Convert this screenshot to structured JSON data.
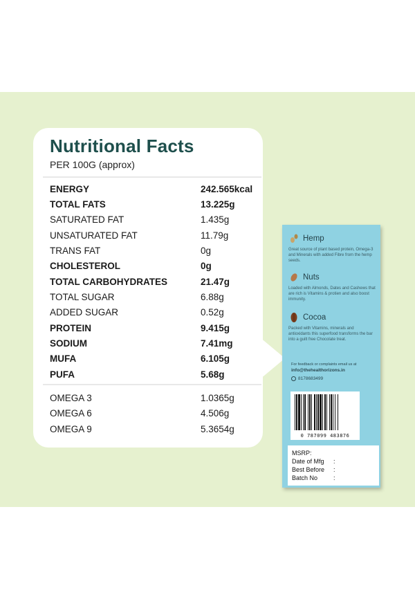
{
  "colors": {
    "background_band": "#e6f1cf",
    "title": "#1e4f4c",
    "box": "#8fd2e2"
  },
  "facts": {
    "title": "Nutritional Facts",
    "subtitle": "PER 100G (approx)",
    "rows": [
      {
        "name": "ENERGY",
        "value": "242.565kcal",
        "bold": true
      },
      {
        "name": "TOTAL FATS",
        "value": "13.225g",
        "bold": true
      },
      {
        "name": "SATURATED FAT",
        "value": "1.435g",
        "bold": false
      },
      {
        "name": "UNSATURATED FAT",
        "value": "11.79g",
        "bold": false
      },
      {
        "name": "TRANS FAT",
        "value": "0g",
        "bold": false
      },
      {
        "name": "CHOLESTEROL",
        "value": "0g",
        "bold": true
      },
      {
        "name": "TOTAL CARBOHYDRATES",
        "value": "21.47g",
        "bold": true
      },
      {
        "name": "TOTAL SUGAR",
        "value": "6.88g",
        "bold": false
      },
      {
        "name": "ADDED SUGAR",
        "value": "0.52g",
        "bold": false
      },
      {
        "name": "PROTEIN",
        "value": "9.415g",
        "bold": true
      },
      {
        "name": "SODIUM",
        "value": "7.41mg",
        "bold": true
      },
      {
        "name": "MUFA",
        "value": "6.105g",
        "bold": true
      },
      {
        "name": "PUFA",
        "value": "5.68g",
        "bold": true
      }
    ],
    "omega_rows": [
      {
        "name": "OMEGA 3",
        "value": "1.0365g"
      },
      {
        "name": "OMEGA 6",
        "value": "4.506g"
      },
      {
        "name": "OMEGA 9",
        "value": "5.3654g"
      }
    ]
  },
  "box": {
    "sections": [
      {
        "title": "Hemp",
        "icon": "hemp-seed-icon",
        "text": "Great source of plant based protein, Omega-3 and Minerals with added Fibre from the hemp seeds."
      },
      {
        "title": "Nuts",
        "icon": "nut-icon",
        "text": "Loaded with Almonds, Dates and Cashews that are rich is Vitamins & protien and also boost immunity."
      },
      {
        "title": "Cocoa",
        "icon": "cocoa-pod-icon",
        "text": "Packed with Vitamins, minerals and antioxidants this superfood transforms the bar into a guilt free Chocolate treat."
      }
    ],
    "contact_note": "For feedback or complaints email us at",
    "email": "info@thehealthorizons.in",
    "phone": "8178683499",
    "barcode_number": "0 787099 483876",
    "label_rows": [
      {
        "label": "MSRP:",
        "colon": ""
      },
      {
        "label": "Date of Mfg",
        "colon": ":"
      },
      {
        "label": "Best Before",
        "colon": ":"
      },
      {
        "label": "Batch No",
        "colon": ":"
      }
    ]
  }
}
